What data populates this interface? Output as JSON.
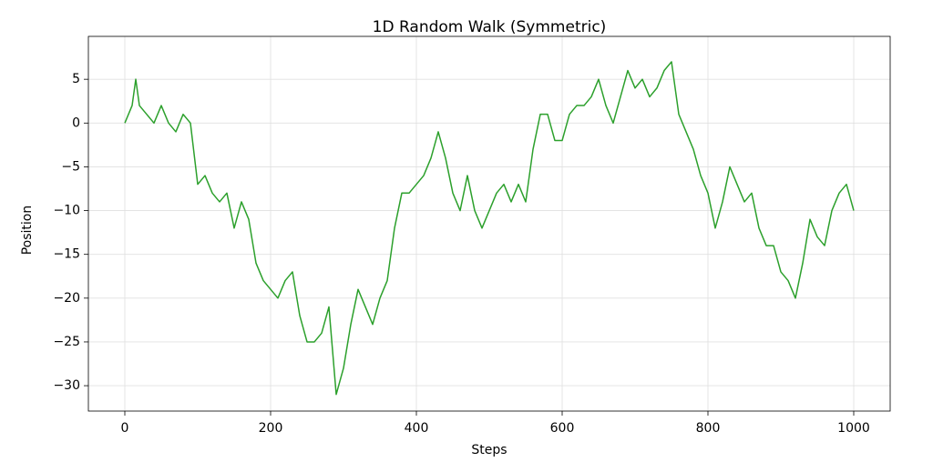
{
  "chart_data": {
    "type": "line",
    "title": "1D Random Walk (Symmetric)",
    "x_label": "Steps",
    "y_label": "Position",
    "color": "#2ca02c",
    "grid": true,
    "x": [
      0,
      10,
      15,
      20,
      30,
      40,
      50,
      60,
      70,
      80,
      90,
      100,
      110,
      120,
      130,
      140,
      150,
      160,
      170,
      180,
      190,
      200,
      210,
      220,
      230,
      240,
      250,
      260,
      270,
      280,
      290,
      300,
      310,
      320,
      330,
      340,
      350,
      360,
      370,
      380,
      390,
      400,
      410,
      420,
      430,
      440,
      450,
      460,
      470,
      480,
      490,
      500,
      510,
      520,
      530,
      540,
      550,
      560,
      570,
      580,
      590,
      600,
      610,
      620,
      630,
      640,
      650,
      660,
      670,
      680,
      690,
      700,
      710,
      720,
      730,
      740,
      750,
      760,
      770,
      780,
      790,
      800,
      810,
      820,
      830,
      840,
      850,
      860,
      870,
      880,
      890,
      900,
      910,
      920,
      930,
      940,
      950,
      960,
      970,
      980,
      990,
      1000
    ],
    "values": [
      0,
      2,
      5,
      2,
      1,
      0,
      2,
      0,
      -1,
      1,
      0,
      -7,
      -6,
      -8,
      -9,
      -8,
      -12,
      -9,
      -11,
      -16,
      -18,
      -19,
      -20,
      -18,
      -17,
      -22,
      -25,
      -25,
      -24,
      -21,
      -31,
      -28,
      -23,
      -19,
      -21,
      -23,
      -20,
      -18,
      -12,
      -8,
      -8,
      -7,
      -6,
      -4,
      -1,
      -4,
      -8,
      -10,
      -6,
      -10,
      -12,
      -10,
      -8,
      -7,
      -9,
      -7,
      -9,
      -3,
      1,
      1,
      -2,
      -2,
      1,
      2,
      2,
      3,
      5,
      2,
      0,
      3,
      6,
      4,
      5,
      3,
      4,
      6,
      7,
      1,
      -1,
      -3,
      -6,
      -8,
      -12,
      -9,
      -5,
      -7,
      -9,
      -8,
      -12,
      -14,
      -14,
      -17,
      -18,
      -20,
      -16,
      -11,
      -13,
      -14,
      -10,
      -8,
      -7,
      -10
    ],
    "xlim": [
      -50,
      1050
    ],
    "ylim": [
      -32.9,
      9.9
    ],
    "xticks": [
      0,
      200,
      400,
      600,
      800,
      1000
    ],
    "yticks": [
      {
        "value": -30,
        "label": "−30"
      },
      {
        "value": -25,
        "label": "−25"
      },
      {
        "value": -20,
        "label": "−20"
      },
      {
        "value": -15,
        "label": "−15"
      },
      {
        "value": -10,
        "label": "−10"
      },
      {
        "value": -5,
        "label": "−5"
      },
      0,
      5
    ]
  }
}
